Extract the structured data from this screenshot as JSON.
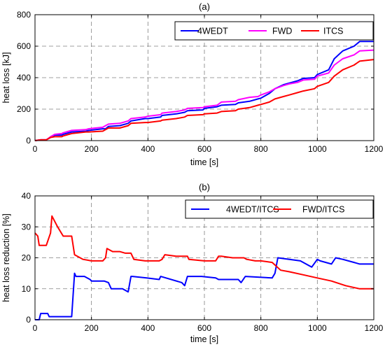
{
  "chart_data": [
    {
      "type": "line",
      "title": "(a)",
      "xlabel": "time [s]",
      "ylabel": "heat loss [kJ]",
      "xlim": [
        0,
        1200
      ],
      "ylim": [
        0,
        800
      ],
      "xticks": [
        "0",
        "200",
        "400",
        "600",
        "800",
        "1000",
        "1200"
      ],
      "yticks": [
        "0",
        "200",
        "400",
        "600",
        "800"
      ],
      "grid": true,
      "legend": "top-right, horizontal",
      "series": [
        {
          "name": "4WEDT",
          "color": "#0000ff",
          "x": [
            0,
            20,
            40,
            55,
            70,
            95,
            100,
            130,
            180,
            190,
            240,
            250,
            260,
            300,
            330,
            340,
            390,
            400,
            445,
            450,
            500,
            530,
            540,
            595,
            600,
            645,
            660,
            710,
            720,
            760,
            790,
            800,
            830,
            850,
            880,
            900,
            930,
            950,
            990,
            1000,
            1040,
            1060,
            1090,
            1130,
            1150,
            1200
          ],
          "y": [
            0,
            5,
            5,
            20,
            35,
            35,
            40,
            55,
            60,
            65,
            75,
            75,
            90,
            95,
            110,
            125,
            140,
            140,
            150,
            160,
            170,
            180,
            190,
            195,
            205,
            215,
            225,
            230,
            240,
            250,
            265,
            270,
            300,
            330,
            355,
            365,
            380,
            395,
            400,
            420,
            450,
            520,
            570,
            600,
            630,
            630
          ]
        },
        {
          "name": "FWD",
          "color": "#ff00ff",
          "x": [
            0,
            20,
            40,
            55,
            70,
            95,
            100,
            130,
            180,
            190,
            240,
            250,
            260,
            300,
            330,
            340,
            390,
            400,
            445,
            450,
            500,
            530,
            540,
            595,
            600,
            645,
            660,
            710,
            720,
            760,
            790,
            800,
            830,
            850,
            880,
            900,
            930,
            950,
            990,
            1000,
            1040,
            1060,
            1090,
            1130,
            1150,
            1200
          ],
          "y": [
            0,
            5,
            5,
            25,
            40,
            45,
            50,
            65,
            70,
            75,
            85,
            95,
            105,
            110,
            125,
            140,
            150,
            155,
            165,
            175,
            185,
            195,
            205,
            210,
            215,
            225,
            245,
            250,
            260,
            275,
            280,
            290,
            310,
            330,
            350,
            360,
            370,
            385,
            390,
            410,
            430,
            480,
            520,
            545,
            570,
            575
          ]
        },
        {
          "name": "ITCS",
          "color": "#ff0000",
          "x": [
            0,
            20,
            40,
            55,
            70,
            95,
            100,
            130,
            180,
            190,
            240,
            250,
            260,
            300,
            330,
            340,
            390,
            400,
            445,
            450,
            500,
            530,
            540,
            595,
            600,
            645,
            660,
            710,
            720,
            760,
            790,
            800,
            830,
            850,
            880,
            900,
            930,
            950,
            990,
            1000,
            1040,
            1060,
            1090,
            1130,
            1150,
            1200
          ],
          "y": [
            0,
            5,
            5,
            20,
            25,
            25,
            30,
            45,
            55,
            55,
            60,
            70,
            80,
            80,
            95,
            110,
            115,
            115,
            125,
            130,
            140,
            150,
            160,
            165,
            170,
            175,
            185,
            190,
            200,
            210,
            225,
            230,
            245,
            265,
            280,
            290,
            305,
            315,
            330,
            345,
            370,
            410,
            450,
            480,
            505,
            515
          ]
        }
      ]
    },
    {
      "type": "line",
      "title": "(b)",
      "xlabel": "time [s]",
      "ylabel": "heat loss reduction [%]",
      "xlim": [
        0,
        1200
      ],
      "ylim": [
        0,
        40
      ],
      "xticks": [
        "0",
        "200",
        "400",
        "600",
        "800",
        "1000",
        "1200"
      ],
      "yticks": [
        "0",
        "10",
        "20",
        "30",
        "40"
      ],
      "grid": true,
      "legend": "top-right, horizontal",
      "series": [
        {
          "name": "4WEDT/ITCS",
          "color": "#0000ff",
          "x": [
            0,
            15,
            20,
            45,
            50,
            130,
            140,
            145,
            175,
            195,
            200,
            245,
            260,
            270,
            310,
            330,
            340,
            345,
            395,
            440,
            445,
            520,
            530,
            540,
            590,
            640,
            650,
            720,
            730,
            745,
            840,
            850,
            860,
            940,
            980,
            1000,
            1010,
            1050,
            1065,
            1090,
            1130,
            1150,
            1200
          ],
          "y": [
            0,
            0,
            2,
            2,
            1,
            1,
            15,
            14,
            14,
            13,
            12.5,
            12.5,
            12,
            10,
            10,
            9,
            14,
            14,
            13.5,
            13,
            14,
            12,
            11,
            14,
            14,
            13.5,
            13,
            13,
            12,
            14,
            13.5,
            15,
            20,
            19,
            17,
            19.5,
            19,
            18,
            20,
            19.5,
            18.5,
            18,
            18
          ]
        },
        {
          "name": "FWD/ITCS",
          "color": "#ff0000",
          "x": [
            0,
            10,
            15,
            40,
            55,
            60,
            80,
            100,
            130,
            140,
            160,
            170,
            200,
            240,
            250,
            255,
            275,
            300,
            320,
            340,
            350,
            390,
            440,
            450,
            460,
            500,
            540,
            545,
            600,
            640,
            650,
            660,
            700,
            740,
            750,
            780,
            800,
            840,
            870,
            900,
            950,
            1000,
            1050,
            1100,
            1150,
            1200
          ],
          "y": [
            28,
            27,
            24,
            24,
            28,
            33.5,
            30,
            27,
            27,
            21,
            20,
            19.5,
            19,
            19,
            20,
            23,
            22,
            22,
            21.5,
            21.5,
            19.5,
            19,
            19,
            19.5,
            21,
            20.5,
            20.5,
            19.5,
            19,
            19,
            20.5,
            20.5,
            20,
            20,
            19.5,
            19,
            19,
            18.5,
            16,
            15.5,
            14.5,
            13.5,
            12.5,
            11,
            10,
            10
          ]
        }
      ]
    }
  ]
}
